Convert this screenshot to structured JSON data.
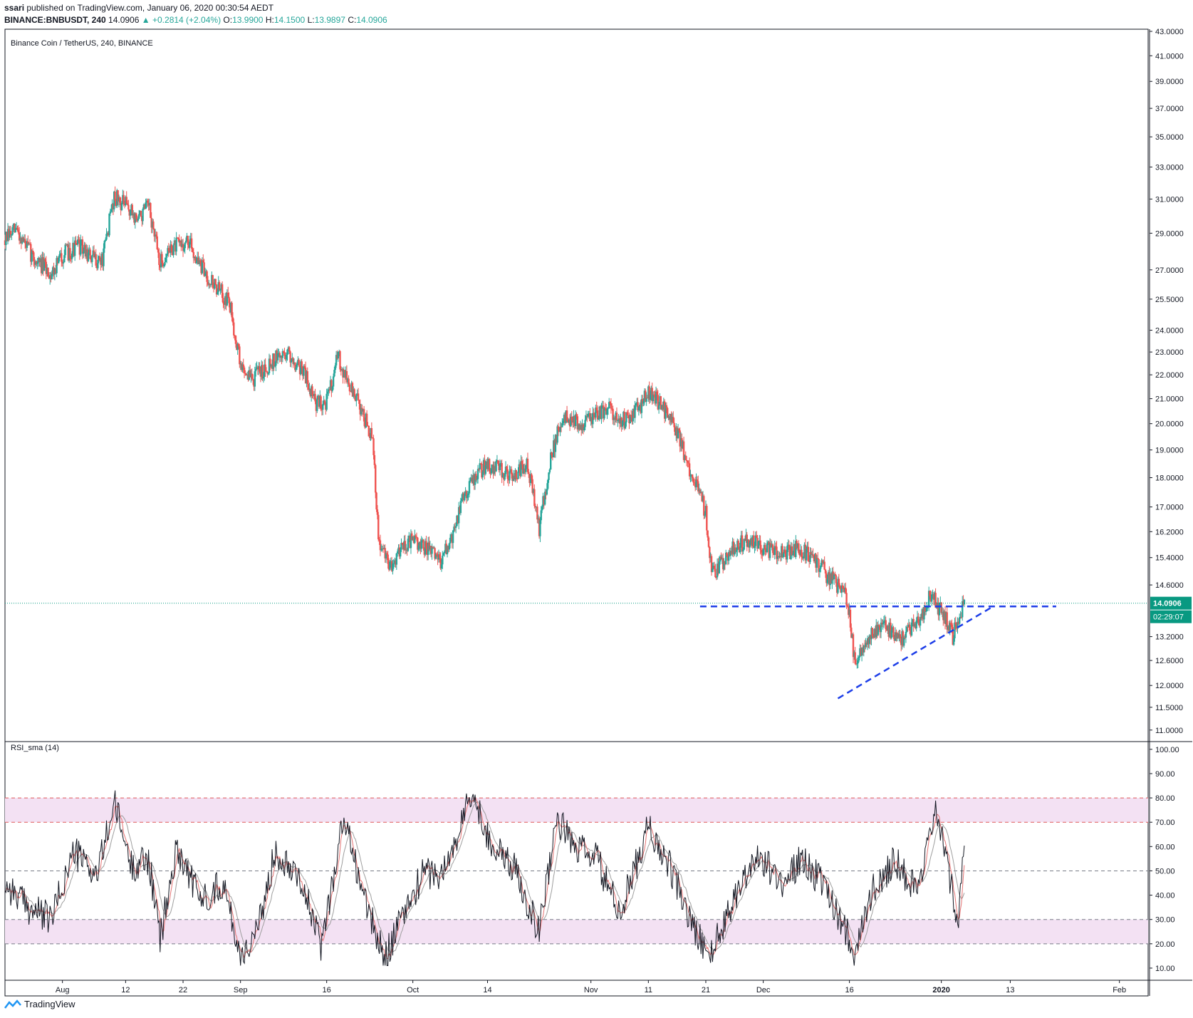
{
  "header": {
    "published_by": "ssari",
    "published_text": "published on TradingView.com, January 06, 2020 00:30:54 AEDT",
    "symbol": "BINANCE:BNBUSDT, 240",
    "last_price": "14.0906",
    "change": "+0.2814 (+2.04%)",
    "o_label": "O:",
    "o_value": "13.9900",
    "h_label": "H:",
    "h_value": "14.1500",
    "l_label": "L:",
    "l_value": "13.9897",
    "c_label": "C:",
    "c_value": "14.0906"
  },
  "footer": {
    "brand": "TradingView"
  },
  "colors": {
    "up": "#26a69a",
    "down": "#ef5350",
    "trend": "#1d3ee8",
    "price_line": "#089981",
    "rsi": "#131722",
    "rsi_fast": "#e57373",
    "rsi_slow": "#9e9e9e",
    "band": "#f3e1f3",
    "band_border": "#e05a5a"
  },
  "chart_data": [
    {
      "type": "candlestick",
      "title": "Binance Coin / TetherUS, 240, BINANCE",
      "y_scale": "log",
      "ylim": [
        10.8,
        43.0
      ],
      "y_ticks": [
        "43.0000",
        "41.0000",
        "39.0000",
        "37.0000",
        "35.0000",
        "33.0000",
        "31.0000",
        "29.0000",
        "27.0000",
        "25.5000",
        "24.0000",
        "23.0000",
        "22.0000",
        "21.0000",
        "20.0000",
        "19.0000",
        "18.0000",
        "17.0000",
        "16.2000",
        "15.4000",
        "14.6000",
        "13.2000",
        "12.6000",
        "12.0000",
        "11.5000",
        "11.0000"
      ],
      "current_price_label": "14.0906",
      "countdown_label": "02:29:07",
      "x_ticks": [
        "Aug",
        "12",
        "22",
        "Sep",
        "16",
        "Oct",
        "14",
        "Nov",
        "11",
        "21",
        "Dec",
        "16",
        "2020",
        "13",
        "Feb"
      ],
      "x_tick_dates": [
        "2019-08-01",
        "2019-08-12",
        "2019-08-22",
        "2019-09-01",
        "2019-09-16",
        "2019-10-01",
        "2019-10-14",
        "2019-11-01",
        "2019-11-11",
        "2019-11-21",
        "2019-12-01",
        "2019-12-16",
        "2020-01-01",
        "2020-01-13",
        "2020-02-01"
      ],
      "x_range": [
        "2019-07-22",
        "2020-02-06"
      ],
      "price_path": [
        {
          "date": "2019-07-22",
          "close": 28.6
        },
        {
          "date": "2019-07-24",
          "close": 29.2
        },
        {
          "date": "2019-07-27",
          "close": 27.6
        },
        {
          "date": "2019-07-30",
          "close": 26.8
        },
        {
          "date": "2019-08-01",
          "close": 27.8
        },
        {
          "date": "2019-08-04",
          "close": 28.3
        },
        {
          "date": "2019-08-06",
          "close": 27.6
        },
        {
          "date": "2019-08-08",
          "close": 27.5
        },
        {
          "date": "2019-08-10",
          "close": 31.2
        },
        {
          "date": "2019-08-12",
          "close": 30.6
        },
        {
          "date": "2019-08-14",
          "close": 29.8
        },
        {
          "date": "2019-08-16",
          "close": 30.5
        },
        {
          "date": "2019-08-18",
          "close": 27.3
        },
        {
          "date": "2019-08-20",
          "close": 28.2
        },
        {
          "date": "2019-08-23",
          "close": 28.5
        },
        {
          "date": "2019-08-25",
          "close": 27.2
        },
        {
          "date": "2019-08-28",
          "close": 26.0
        },
        {
          "date": "2019-08-30",
          "close": 25.4
        },
        {
          "date": "2019-09-01",
          "close": 22.4
        },
        {
          "date": "2019-09-03",
          "close": 21.8
        },
        {
          "date": "2019-09-06",
          "close": 22.5
        },
        {
          "date": "2019-09-09",
          "close": 23.0
        },
        {
          "date": "2019-09-12",
          "close": 22.2
        },
        {
          "date": "2019-09-14",
          "close": 20.8
        },
        {
          "date": "2019-09-16",
          "close": 20.9
        },
        {
          "date": "2019-09-18",
          "close": 22.8
        },
        {
          "date": "2019-09-20",
          "close": 21.5
        },
        {
          "date": "2019-09-22",
          "close": 20.6
        },
        {
          "date": "2019-09-24",
          "close": 19.3
        },
        {
          "date": "2019-09-25",
          "close": 15.9
        },
        {
          "date": "2019-09-27",
          "close": 15.1
        },
        {
          "date": "2019-09-29",
          "close": 15.8
        },
        {
          "date": "2019-10-01",
          "close": 15.9
        },
        {
          "date": "2019-10-04",
          "close": 15.6
        },
        {
          "date": "2019-10-06",
          "close": 15.3
        },
        {
          "date": "2019-10-08",
          "close": 16.1
        },
        {
          "date": "2019-10-10",
          "close": 17.5
        },
        {
          "date": "2019-10-12",
          "close": 18.1
        },
        {
          "date": "2019-10-14",
          "close": 18.5
        },
        {
          "date": "2019-10-16",
          "close": 18.3
        },
        {
          "date": "2019-10-18",
          "close": 18.1
        },
        {
          "date": "2019-10-21",
          "close": 18.4
        },
        {
          "date": "2019-10-23",
          "close": 16.3
        },
        {
          "date": "2019-10-25",
          "close": 18.6
        },
        {
          "date": "2019-10-27",
          "close": 20.3
        },
        {
          "date": "2019-10-30",
          "close": 20.0
        },
        {
          "date": "2019-11-01",
          "close": 20.2
        },
        {
          "date": "2019-11-04",
          "close": 20.6
        },
        {
          "date": "2019-11-07",
          "close": 20.1
        },
        {
          "date": "2019-11-09",
          "close": 20.5
        },
        {
          "date": "2019-11-11",
          "close": 21.3
        },
        {
          "date": "2019-11-13",
          "close": 20.8
        },
        {
          "date": "2019-11-15",
          "close": 20.2
        },
        {
          "date": "2019-11-17",
          "close": 19.0
        },
        {
          "date": "2019-11-19",
          "close": 17.9
        },
        {
          "date": "2019-11-21",
          "close": 16.8
        },
        {
          "date": "2019-11-22",
          "close": 14.9
        },
        {
          "date": "2019-11-24",
          "close": 15.3
        },
        {
          "date": "2019-11-26",
          "close": 15.8
        },
        {
          "date": "2019-11-29",
          "close": 15.9
        },
        {
          "date": "2019-12-01",
          "close": 15.7
        },
        {
          "date": "2019-12-04",
          "close": 15.5
        },
        {
          "date": "2019-12-07",
          "close": 15.7
        },
        {
          "date": "2019-12-10",
          "close": 15.4
        },
        {
          "date": "2019-12-12",
          "close": 14.9
        },
        {
          "date": "2019-12-15",
          "close": 14.4
        },
        {
          "date": "2019-12-16",
          "close": 13.9
        },
        {
          "date": "2019-12-17",
          "close": 12.4
        },
        {
          "date": "2019-12-19",
          "close": 13.2
        },
        {
          "date": "2019-12-22",
          "close": 13.5
        },
        {
          "date": "2019-12-25",
          "close": 13.1
        },
        {
          "date": "2019-12-28",
          "close": 13.6
        },
        {
          "date": "2019-12-30",
          "close": 14.3
        },
        {
          "date": "2020-01-01",
          "close": 13.9
        },
        {
          "date": "2020-01-03",
          "close": 13.2
        },
        {
          "date": "2020-01-05",
          "close": 14.09
        }
      ],
      "annotations": [
        {
          "kind": "horizontal_dashed",
          "price": 14.0,
          "from": "2019-11-20",
          "to": "2020-01-21"
        },
        {
          "kind": "trendline_dashed",
          "from": {
            "date": "2019-12-14",
            "price": 11.7
          },
          "to": "2020-01-10"
        }
      ]
    },
    {
      "type": "line",
      "title": "RSI_sma (14)",
      "ylim": [
        5,
        102
      ],
      "y_ticks": [
        "100.00",
        "90.00",
        "80.00",
        "70.00",
        "60.00",
        "50.00",
        "40.00",
        "30.00",
        "20.00",
        "10.00"
      ],
      "bands": [
        [
          70,
          80
        ],
        [
          20,
          30
        ]
      ],
      "levels": [
        80,
        70,
        50,
        30,
        20
      ],
      "rsi_path": [
        {
          "date": "2019-07-22",
          "value": 45
        },
        {
          "date": "2019-07-26",
          "value": 35
        },
        {
          "date": "2019-07-30",
          "value": 30
        },
        {
          "date": "2019-08-03",
          "value": 58
        },
        {
          "date": "2019-08-07",
          "value": 48
        },
        {
          "date": "2019-08-10",
          "value": 78
        },
        {
          "date": "2019-08-13",
          "value": 52
        },
        {
          "date": "2019-08-16",
          "value": 55
        },
        {
          "date": "2019-08-18",
          "value": 22
        },
        {
          "date": "2019-08-21",
          "value": 60
        },
        {
          "date": "2019-08-25",
          "value": 38
        },
        {
          "date": "2019-08-29",
          "value": 45
        },
        {
          "date": "2019-09-01",
          "value": 15
        },
        {
          "date": "2019-09-04",
          "value": 25
        },
        {
          "date": "2019-09-07",
          "value": 58
        },
        {
          "date": "2019-09-11",
          "value": 50
        },
        {
          "date": "2019-09-15",
          "value": 19
        },
        {
          "date": "2019-09-19",
          "value": 72
        },
        {
          "date": "2019-09-23",
          "value": 35
        },
        {
          "date": "2019-09-26",
          "value": 14
        },
        {
          "date": "2019-09-29",
          "value": 30
        },
        {
          "date": "2019-10-03",
          "value": 50
        },
        {
          "date": "2019-10-06",
          "value": 48
        },
        {
          "date": "2019-10-09",
          "value": 65
        },
        {
          "date": "2019-10-11",
          "value": 82
        },
        {
          "date": "2019-10-15",
          "value": 60
        },
        {
          "date": "2019-10-19",
          "value": 50
        },
        {
          "date": "2019-10-23",
          "value": 25
        },
        {
          "date": "2019-10-26",
          "value": 72
        },
        {
          "date": "2019-10-29",
          "value": 60
        },
        {
          "date": "2019-11-02",
          "value": 55
        },
        {
          "date": "2019-11-06",
          "value": 32
        },
        {
          "date": "2019-11-11",
          "value": 68
        },
        {
          "date": "2019-11-15",
          "value": 50
        },
        {
          "date": "2019-11-19",
          "value": 25
        },
        {
          "date": "2019-11-22",
          "value": 16
        },
        {
          "date": "2019-11-26",
          "value": 40
        },
        {
          "date": "2019-11-30",
          "value": 57
        },
        {
          "date": "2019-12-04",
          "value": 45
        },
        {
          "date": "2019-12-08",
          "value": 55
        },
        {
          "date": "2019-12-12",
          "value": 42
        },
        {
          "date": "2019-12-15",
          "value": 28
        },
        {
          "date": "2019-12-17",
          "value": 16
        },
        {
          "date": "2019-12-20",
          "value": 42
        },
        {
          "date": "2019-12-24",
          "value": 55
        },
        {
          "date": "2019-12-28",
          "value": 40
        },
        {
          "date": "2019-12-31",
          "value": 75
        },
        {
          "date": "2020-01-03",
          "value": 40
        },
        {
          "date": "2020-01-04",
          "value": 30
        },
        {
          "date": "2020-01-05",
          "value": 66
        }
      ]
    }
  ]
}
